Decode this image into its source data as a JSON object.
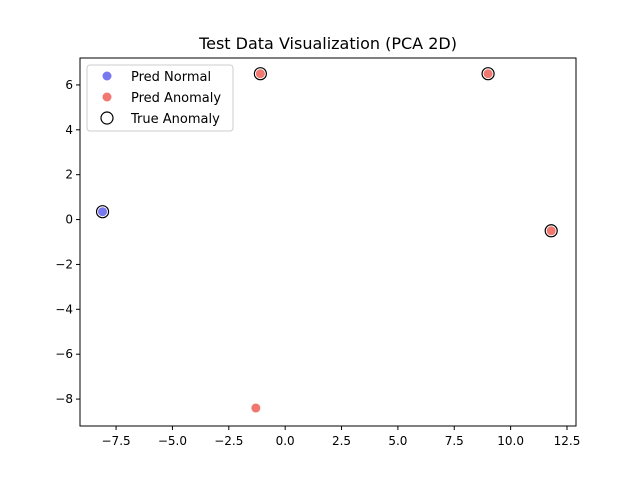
{
  "chart_data": {
    "type": "scatter",
    "title": "Test Data Visualization (PCA 2D)",
    "xlabel": "",
    "ylabel": "",
    "xlim": [
      -9.1,
      12.9
    ],
    "ylim": [
      -9.2,
      7.2
    ],
    "xticks": [
      -7.5,
      -5.0,
      -2.5,
      0.0,
      2.5,
      5.0,
      7.5,
      10.0,
      12.5
    ],
    "yticks": [
      6,
      4,
      2,
      0,
      -2,
      -4,
      -6,
      -8
    ],
    "xtick_labels": [
      "−7.5",
      "−5.0",
      "−2.5",
      "0.0",
      "2.5",
      "5.0",
      "7.5",
      "10.0",
      "12.5"
    ],
    "ytick_labels": [
      "6",
      "4",
      "2",
      "0",
      "−2",
      "−4",
      "−6",
      "−8"
    ],
    "grid": false,
    "legend_position": "top-left",
    "series": [
      {
        "name": "Pred Normal",
        "marker": "filled-circle",
        "color": "#7878f0",
        "points": [
          {
            "x": -8.1,
            "y": 0.35
          }
        ]
      },
      {
        "name": "Pred Anomaly",
        "marker": "filled-circle",
        "color": "#f07870",
        "points": [
          {
            "x": -1.1,
            "y": 6.5
          },
          {
            "x": 9.0,
            "y": 6.5
          },
          {
            "x": 11.8,
            "y": -0.5
          },
          {
            "x": -1.3,
            "y": -8.4
          }
        ]
      },
      {
        "name": "True Anomaly",
        "marker": "open-circle",
        "color": "#000000",
        "points": [
          {
            "x": -8.1,
            "y": 0.35
          },
          {
            "x": -1.1,
            "y": 6.5
          },
          {
            "x": 9.0,
            "y": 6.5
          },
          {
            "x": 11.8,
            "y": -0.5
          }
        ]
      }
    ]
  }
}
